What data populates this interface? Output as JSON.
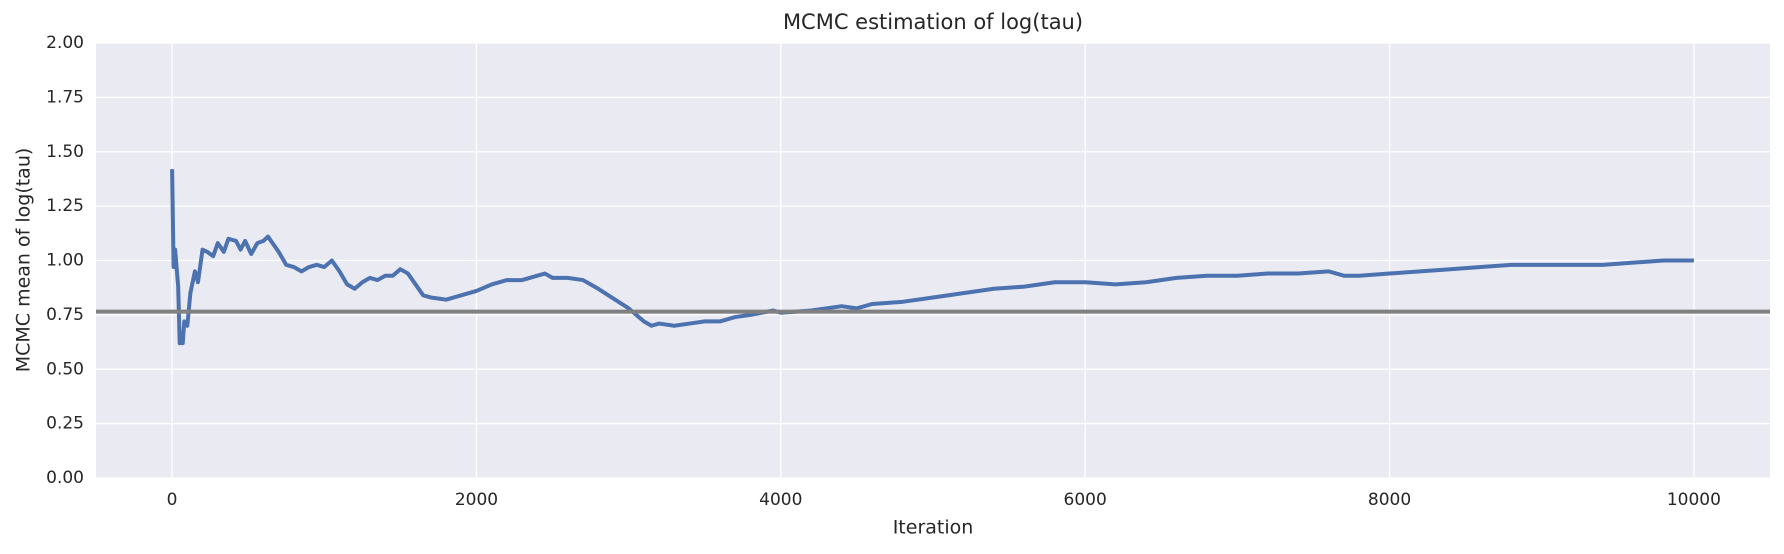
{
  "chart_data": {
    "type": "line",
    "title": "MCMC estimation of log(tau)",
    "xlabel": "Iteration",
    "ylabel": "MCMC mean of log(tau)",
    "x": [
      0,
      10,
      20,
      40,
      50,
      70,
      80,
      100,
      120,
      150,
      170,
      200,
      230,
      270,
      300,
      340,
      370,
      420,
      450,
      480,
      520,
      560,
      600,
      630,
      660,
      700,
      750,
      800,
      850,
      900,
      950,
      1000,
      1050,
      1100,
      1150,
      1200,
      1250,
      1300,
      1350,
      1400,
      1450,
      1500,
      1550,
      1600,
      1650,
      1700,
      1800,
      1900,
      2000,
      2100,
      2200,
      2300,
      2400,
      2450,
      2500,
      2600,
      2700,
      2800,
      3000,
      3100,
      3150,
      3200,
      3300,
      3400,
      3500,
      3600,
      3700,
      3800,
      3950,
      4000,
      4200,
      4400,
      4500,
      4600,
      4800,
      5000,
      5200,
      5400,
      5600,
      5800,
      6000,
      6200,
      6400,
      6600,
      6800,
      7000,
      7200,
      7400,
      7600,
      7700,
      7800,
      8000,
      8200,
      8400,
      8600,
      8800,
      9000,
      9200,
      9400,
      9600,
      9800,
      10000
    ],
    "series": [
      {
        "color": "#4c72b0",
        "values": [
          1.42,
          0.97,
          1.05,
          0.88,
          0.62,
          0.62,
          0.72,
          0.7,
          0.85,
          0.95,
          0.9,
          1.05,
          1.04,
          1.02,
          1.08,
          1.04,
          1.1,
          1.09,
          1.05,
          1.09,
          1.03,
          1.08,
          1.09,
          1.11,
          1.08,
          1.04,
          0.98,
          0.97,
          0.95,
          0.97,
          0.98,
          0.97,
          1.0,
          0.95,
          0.89,
          0.87,
          0.9,
          0.92,
          0.91,
          0.93,
          0.93,
          0.96,
          0.94,
          0.89,
          0.84,
          0.83,
          0.82,
          0.84,
          0.86,
          0.89,
          0.91,
          0.91,
          0.93,
          0.94,
          0.92,
          0.92,
          0.91,
          0.87,
          0.78,
          0.72,
          0.7,
          0.71,
          0.7,
          0.71,
          0.72,
          0.72,
          0.74,
          0.75,
          0.77,
          0.76,
          0.77,
          0.79,
          0.78,
          0.8,
          0.81,
          0.83,
          0.85,
          0.87,
          0.88,
          0.9,
          0.9,
          0.89,
          0.9,
          0.92,
          0.93,
          0.93,
          0.94,
          0.94,
          0.95,
          0.93,
          0.93,
          0.94,
          0.95,
          0.96,
          0.97,
          0.98,
          0.98,
          0.98,
          0.98,
          0.99,
          1.0,
          1.0
        ]
      }
    ],
    "hline": 0.765,
    "hline_color": "#808080",
    "xlim": [
      -500,
      10500
    ],
    "ylim": [
      0,
      2
    ],
    "xticks": [
      0,
      2000,
      4000,
      6000,
      8000,
      10000
    ],
    "yticks": [
      {
        "value": 0,
        "label": "0.00"
      },
      {
        "value": 0.25,
        "label": "0.25"
      },
      {
        "value": 0.5,
        "label": "0.50"
      },
      {
        "value": 0.75,
        "label": "0.75"
      },
      {
        "value": 1,
        "label": "1.00"
      },
      {
        "value": 1.25,
        "label": "1.25"
      },
      {
        "value": 1.5,
        "label": "1.50"
      },
      {
        "value": 1.75,
        "label": "1.75"
      },
      {
        "value": 2,
        "label": "2.00"
      }
    ],
    "grid": true
  }
}
